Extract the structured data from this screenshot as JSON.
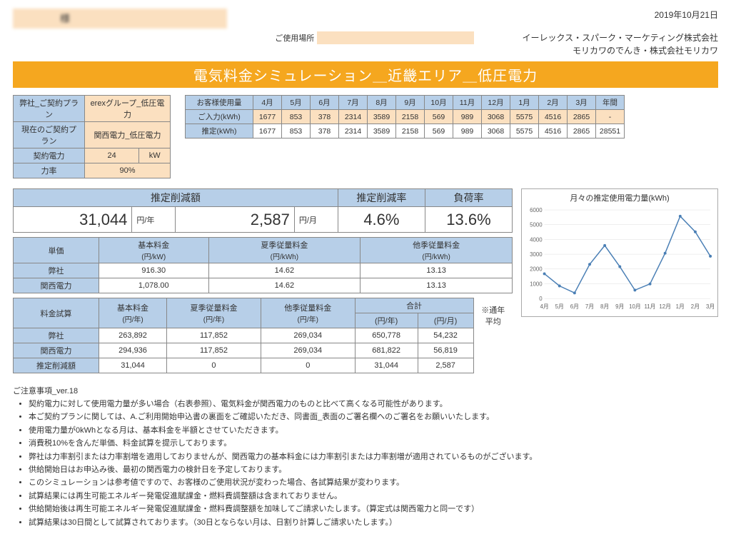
{
  "date": "2019年10月21日",
  "customer": "　　　　様",
  "place_label": "ご使用場所",
  "company": {
    "line1": "イーレックス・スパーク・マーケティング株式会社",
    "line2": "モリカワのでんき・株式会社モリカワ"
  },
  "title": "電気料金シミュレーション＿近畿エリア＿低圧電力",
  "plan": {
    "labels": [
      "弊社_ご契約プラン",
      "現在のご契約プラン",
      "契約電力",
      "力率"
    ],
    "our_plan": "erexグループ_低圧電力",
    "current_plan": "関西電力_低圧電力",
    "power": "24",
    "power_unit": "kW",
    "pf": "90%"
  },
  "usage": {
    "header": "お客様使用量",
    "months": [
      "4月",
      "5月",
      "6月",
      "7月",
      "8月",
      "9月",
      "10月",
      "11月",
      "12月",
      "1月",
      "2月",
      "3月",
      "年間"
    ],
    "row1_label": "ご入力(kWh)",
    "row1": [
      "1677",
      "853",
      "378",
      "2314",
      "3589",
      "2158",
      "569",
      "989",
      "3068",
      "5575",
      "4516",
      "2865",
      "-"
    ],
    "row2_label": "推定(kWh)",
    "row2": [
      "1677",
      "853",
      "378",
      "2314",
      "3589",
      "2158",
      "569",
      "989",
      "3068",
      "5575",
      "4516",
      "2865",
      "28551"
    ]
  },
  "summary": {
    "h1": "推定削減額",
    "h2": "推定削減率",
    "h3": "負荷率",
    "amount_year": "31,044",
    "unit_year": "円/年",
    "amount_month": "2,587",
    "unit_month": "円/月",
    "reduction_rate": "4.6%",
    "load_factor": "13.6%"
  },
  "unit_price": {
    "header": [
      "単価",
      "基本料金",
      "夏季従量料金",
      "他季従量料金"
    ],
    "sub": [
      "",
      "(円/kW)",
      "(円/kWh)",
      "(円/kWh)"
    ],
    "rows": [
      {
        "label": "弊社",
        "vals": [
          "916.30",
          "14.62",
          "13.13"
        ]
      },
      {
        "label": "関西電力",
        "vals": [
          "1,078.00",
          "14.62",
          "13.13"
        ]
      }
    ]
  },
  "cost": {
    "header": [
      "料金試算",
      "基本料金",
      "夏季従量料金",
      "他季従量料金",
      "合計"
    ],
    "sub": [
      "",
      "(円/年)",
      "(円/年)",
      "(円/年)",
      "(円/年)",
      "(円/月)"
    ],
    "note": "※通年平均",
    "rows": [
      {
        "label": "弊社",
        "vals": [
          "263,892",
          "117,852",
          "269,034",
          "650,778",
          "54,232"
        ]
      },
      {
        "label": "関西電力",
        "vals": [
          "294,936",
          "117,852",
          "269,034",
          "681,822",
          "56,819"
        ]
      },
      {
        "label": "推定削減額",
        "vals": [
          "31,044",
          "0",
          "0",
          "31,044",
          "2,587"
        ]
      }
    ]
  },
  "chart": {
    "title": "月々の推定使用電力量(kWh)",
    "ymax": 6000,
    "ystep": 1000,
    "xlabels": [
      "4月",
      "5月",
      "6月",
      "7月",
      "8月",
      "9月",
      "10月",
      "11月",
      "12月",
      "1月",
      "2月",
      "3月"
    ],
    "values": [
      1677,
      853,
      378,
      2314,
      3589,
      2158,
      569,
      989,
      3068,
      5575,
      4516,
      2865
    ],
    "line_color": "#4a7fb5",
    "grid_color": "#dddddd"
  },
  "notes": {
    "title": "ご注意事項_ver.18",
    "items": [
      "契約電力に対して使用電力量が多い場合（右表参照）、電気料金が関西電力のものと比べて高くなる可能性があります。",
      "本ご契約プランに関しては、A.ご利用開始申込書の裏面をご確認いただき、同書面_表面のご署名欄へのご署名をお願いいたします。",
      "使用電力量が0kWhとなる月は、基本料金を半額とさせていただきます。",
      "消費税10%を含んだ単価、料金試算を提示しております。",
      "弊社は力率割引または力率割増を適用しておりませんが、関西電力の基本料金には力率割引または力率割増が適用されているものがございます。",
      "供給開始日はお申込み後、最初の関西電力の検針日を予定しております。",
      "このシミュレーションは参考値ですので、お客様のご使用状況が変わった場合、各試算結果が変わります。",
      "試算結果には再生可能エネルギー発電促進賦課金・燃料費調整額は含まれておりません。",
      "供給開始後は再生可能エネルギー発電促進賦課金・燃料費調整額を加味してご請求いたします。（算定式は関西電力と同一です）",
      "試算結果は30日間として試算されております。（30日とならない月は、日割り計算しご請求いたします。）"
    ]
  }
}
